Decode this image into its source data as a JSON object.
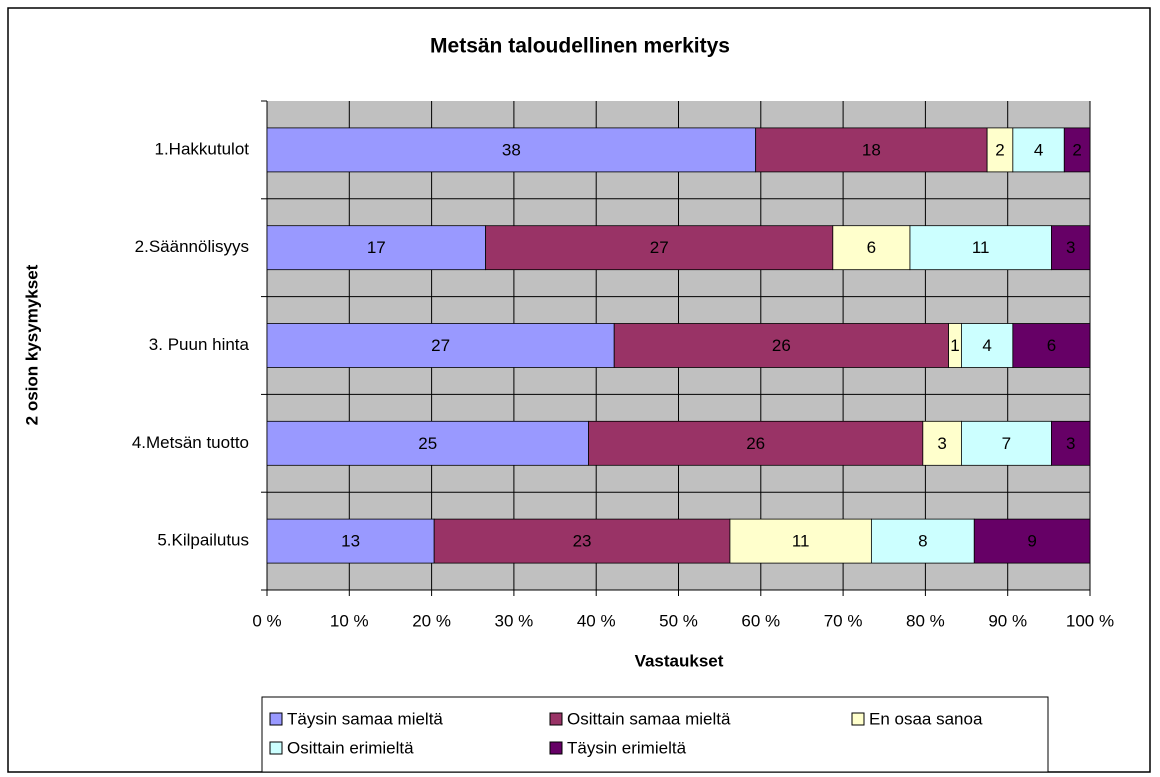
{
  "chart_data": {
    "type": "bar",
    "orientation": "horizontal",
    "stack": "percent",
    "title": "Metsän taloudellinen merkitys",
    "x_label": "Vastaukset",
    "y_label": "2 osion kysymykset",
    "categories": [
      "1.Hakkutulot",
      "2.Säännölisyys",
      "3. Puun hinta",
      "4.Metsän tuotto",
      "5.Kilpailutus"
    ],
    "series": [
      {
        "name": "Täysin samaa mieltä",
        "color": "#9999ff",
        "values": [
          38,
          17,
          27,
          25,
          13
        ]
      },
      {
        "name": "Osittain samaa mieltä",
        "color": "#993366",
        "values": [
          18,
          27,
          26,
          26,
          23
        ]
      },
      {
        "name": "En osaa sanoa",
        "color": "#ffffcc",
        "values": [
          2,
          6,
          1,
          3,
          11
        ]
      },
      {
        "name": "Osittain erimieltä",
        "color": "#ccffff",
        "values": [
          4,
          11,
          4,
          7,
          8
        ]
      },
      {
        "name": "Täysin erimieltä",
        "color": "#660066",
        "values": [
          2,
          3,
          6,
          3,
          9
        ]
      }
    ],
    "xlim": [
      0,
      100
    ],
    "xticks": [
      {
        "value": 0,
        "label": "0 %"
      },
      {
        "value": 10,
        "label": "10 %"
      },
      {
        "value": 20,
        "label": "20 %"
      },
      {
        "value": 30,
        "label": "30 %"
      },
      {
        "value": 40,
        "label": "40 %"
      },
      {
        "value": 50,
        "label": "50 %"
      },
      {
        "value": 60,
        "label": "60 %"
      },
      {
        "value": 70,
        "label": "70 %"
      },
      {
        "value": 80,
        "label": "80 %"
      },
      {
        "value": 90,
        "label": "90 %"
      },
      {
        "value": 100,
        "label": "100 %"
      }
    ],
    "grid": true,
    "legend": "bottom"
  }
}
